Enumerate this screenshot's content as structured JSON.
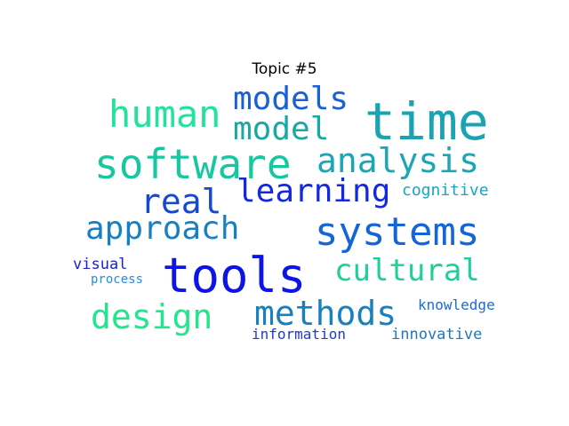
{
  "title": "Topic #5",
  "words": [
    {
      "text": "time",
      "color": "#1aa3b0"
    },
    {
      "text": "software",
      "color": "#17c7a0"
    },
    {
      "text": "human",
      "color": "#22e39a"
    },
    {
      "text": "models",
      "color": "#1760d6"
    },
    {
      "text": "model",
      "color": "#18a9a4"
    },
    {
      "text": "analysis",
      "color": "#19a7b7"
    },
    {
      "text": "systems",
      "color": "#1466d8"
    },
    {
      "text": "tools",
      "color": "#0c14e6"
    },
    {
      "text": "real",
      "color": "#1249d6"
    },
    {
      "text": "learning",
      "color": "#1328e2"
    },
    {
      "text": "cognitive",
      "color": "#19a4c4"
    },
    {
      "text": "approach",
      "color": "#1780c4"
    },
    {
      "text": "cultural",
      "color": "#1ecf9a"
    },
    {
      "text": "visual",
      "color": "#1a22d2"
    },
    {
      "text": "process",
      "color": "#2a8ad8"
    },
    {
      "text": "design",
      "color": "#22e58c"
    },
    {
      "text": "methods",
      "color": "#1880bf"
    },
    {
      "text": "knowledge",
      "color": "#1d6bd2"
    },
    {
      "text": "information",
      "color": "#1b3bd5"
    },
    {
      "text": "innovative",
      "color": "#1b77c6"
    }
  ]
}
